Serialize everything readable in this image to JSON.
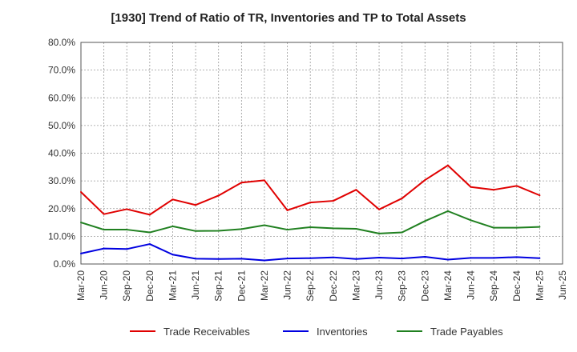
{
  "chart_data": {
    "type": "line",
    "title": "[1930]  Trend of Ratio of TR, Inventories and TP to Total Assets",
    "x_ticks": [
      "Mar-20",
      "Jun-20",
      "Sep-20",
      "Dec-20",
      "Mar-21",
      "Jun-21",
      "Sep-21",
      "Dec-21",
      "Mar-22",
      "Jun-22",
      "Sep-22",
      "Dec-22",
      "Mar-23",
      "Jun-23",
      "Sep-23",
      "Dec-23",
      "Mar-24",
      "Jun-24",
      "Sep-24",
      "Dec-24",
      "Mar-25",
      "Jun-25"
    ],
    "x": [
      "Mar-20",
      "Jun-20",
      "Sep-20",
      "Dec-20",
      "Mar-21",
      "Jun-21",
      "Sep-21",
      "Dec-21",
      "Mar-22",
      "Jun-22",
      "Sep-22",
      "Dec-22",
      "Mar-23",
      "Jun-23",
      "Sep-23",
      "Dec-23",
      "Mar-24",
      "Jun-24",
      "Sep-24",
      "Dec-24",
      "Mar-25"
    ],
    "y_ticks": [
      "0.0%",
      "10.0%",
      "20.0%",
      "30.0%",
      "40.0%",
      "50.0%",
      "60.0%",
      "70.0%",
      "80.0%"
    ],
    "ylim": [
      0,
      80
    ],
    "grid": true,
    "legend_position": "bottom",
    "series": [
      {
        "name": "Trade Receivables",
        "color": "#e00000",
        "values": [
          26.0,
          18.0,
          19.8,
          17.8,
          23.3,
          21.3,
          24.7,
          29.4,
          30.2,
          19.4,
          22.2,
          22.8,
          26.8,
          19.7,
          23.7,
          30.3,
          35.6,
          27.8,
          26.8,
          28.2,
          24.8
        ]
      },
      {
        "name": "Inventories",
        "color": "#0000e0",
        "values": [
          3.8,
          5.6,
          5.4,
          7.2,
          3.4,
          1.9,
          1.8,
          1.9,
          1.3,
          2.0,
          2.1,
          2.4,
          1.8,
          2.3,
          2.0,
          2.6,
          1.6,
          2.2,
          2.2,
          2.5,
          2.1
        ]
      },
      {
        "name": "Trade Payables",
        "color": "#208020",
        "values": [
          15.0,
          12.4,
          12.4,
          11.4,
          13.6,
          11.9,
          12.0,
          12.6,
          14.0,
          12.4,
          13.3,
          12.9,
          12.7,
          11.0,
          11.4,
          15.5,
          19.1,
          15.8,
          13.1,
          13.1,
          13.4
        ]
      }
    ]
  }
}
